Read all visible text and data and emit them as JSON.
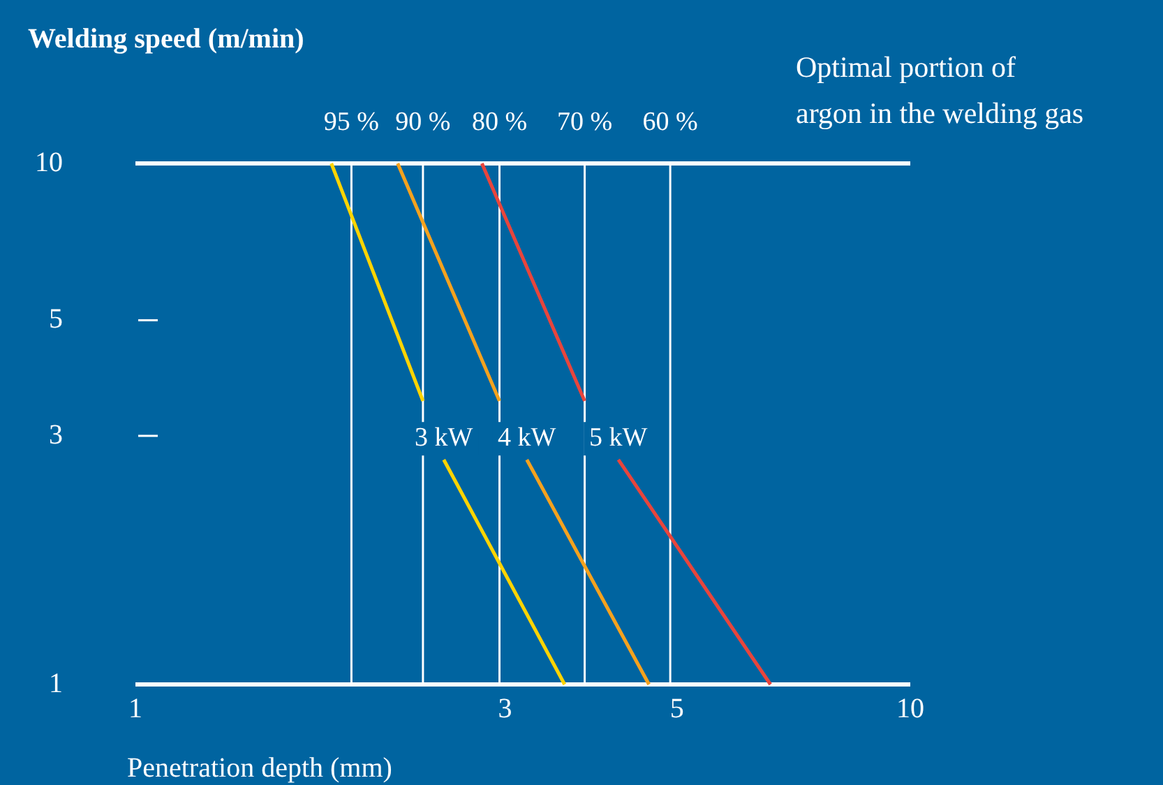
{
  "chart_data": {
    "type": "line",
    "ylabel": "Welding speed (m/min)",
    "xlabel": "Penetration depth (mm)",
    "log": "xy",
    "xlim": [
      1,
      10
    ],
    "ylim": [
      1,
      10
    ],
    "xticks": [
      1,
      3,
      5,
      10
    ],
    "yticks": [
      1,
      3,
      5,
      10
    ],
    "grid": false,
    "legend": false,
    "marker": "none",
    "line_style": "solid",
    "series": [
      {
        "name": "3 kW",
        "color": "#ffd400",
        "x": [
          1.79,
          2.35,
          null,
          2.5,
          3.58
        ],
        "values": [
          10,
          3.5,
          null,
          2.7,
          1
        ]
      },
      {
        "name": "4 kW",
        "color": "#f5a21e",
        "x": [
          2.18,
          2.95,
          null,
          3.2,
          4.6
        ],
        "values": [
          10,
          3.5,
          null,
          2.7,
          1
        ]
      },
      {
        "name": "5 kW",
        "color": "#e8453c",
        "x": [
          2.8,
          3.8,
          null,
          4.2,
          6.6
        ],
        "values": [
          10,
          3.5,
          null,
          2.7,
          1
        ]
      }
    ],
    "ref_lines": [
      {
        "axis": "x",
        "value": 1.9,
        "color": "#ffffff"
      },
      {
        "axis": "x",
        "value": 2.35,
        "color": "#ffffff"
      },
      {
        "axis": "x",
        "value": 2.95,
        "color": "#ffffff"
      },
      {
        "axis": "x",
        "value": 3.8,
        "color": "#ffffff"
      },
      {
        "axis": "x",
        "value": 4.9,
        "color": "#ffffff"
      }
    ],
    "annotations": [
      {
        "text": "95 %",
        "x": 1.9,
        "y": 10
      },
      {
        "text": "90 %",
        "x": 2.35,
        "y": 10
      },
      {
        "text": "80 %",
        "x": 2.95,
        "y": 10
      },
      {
        "text": "70 %",
        "x": 3.8,
        "y": 10
      },
      {
        "text": "60 %",
        "x": 4.9,
        "y": 10
      },
      "Optimal portion of argon in the welding gas"
    ]
  }
}
